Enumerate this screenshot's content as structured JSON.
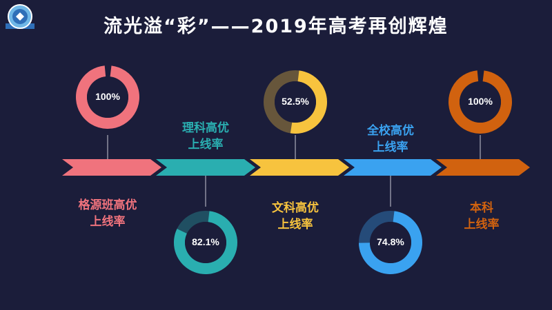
{
  "title": "流光溢“彩”——2019年高考再创辉煌",
  "colors": {
    "background": "#1b1d3a",
    "pink": "#f0737d",
    "teal": "#2aaeb0",
    "yellow": "#f7c33e",
    "blue": "#3aa2f0",
    "orange": "#d1620f"
  },
  "icons": {
    "logo": "school-emblem-icon"
  },
  "stats": [
    {
      "value": "100%",
      "fraction": 1.0,
      "line1": "格源班高优",
      "line2": "上线率",
      "color": "#f0737d"
    },
    {
      "value": "82.1%",
      "fraction": 0.821,
      "line1": "理科高优",
      "line2": "上线率",
      "color": "#2aaeb0"
    },
    {
      "value": "52.5%",
      "fraction": 0.525,
      "line1": "文科高优",
      "line2": "上线率",
      "color": "#f7c33e"
    },
    {
      "value": "74.8%",
      "fraction": 0.748,
      "line1": "全校高优",
      "line2": "上线率",
      "color": "#3aa2f0"
    },
    {
      "value": "100%",
      "fraction": 1.0,
      "line1": "本科",
      "line2": "上线率",
      "color": "#d1620f"
    }
  ]
}
